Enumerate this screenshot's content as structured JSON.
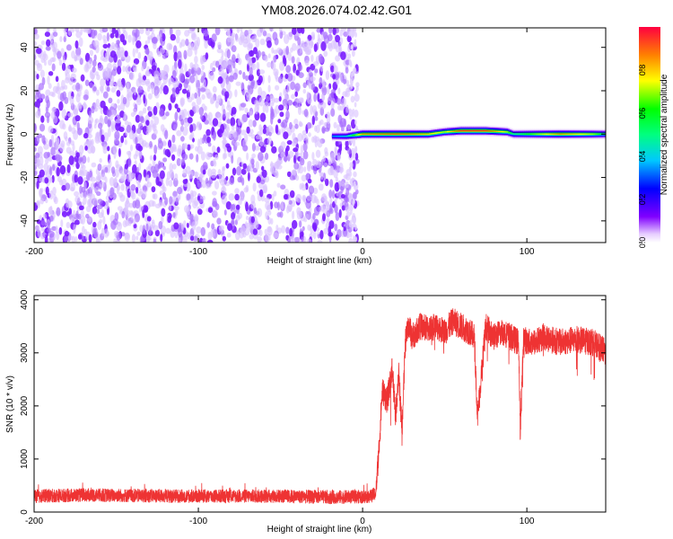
{
  "title": "YM08.2026.074.02.42.G01",
  "chart_data": [
    {
      "type": "heatmap",
      "name": "spectrogram",
      "xlabel": "Height of straight line (km)",
      "ylabel": "Frequency (Hz)",
      "xlim": [
        -200,
        148
      ],
      "ylim": [
        -50,
        49
      ],
      "xticks": [
        -200,
        -100,
        0,
        100
      ],
      "xtick_labels": [
        "-200",
        "-100",
        "0",
        "100"
      ],
      "yticks": [
        -40,
        -20,
        0,
        20,
        40
      ],
      "ytick_labels": [
        "-40",
        "-20",
        "0",
        "20",
        "40"
      ],
      "noise_region_x": [
        -200,
        -3
      ],
      "signal_band": {
        "x": [
          -18,
          -10,
          0,
          20,
          40,
          50,
          60,
          75,
          88,
          92,
          100,
          120,
          140,
          148
        ],
        "freq": [
          -1,
          -1,
          0,
          0,
          0,
          1,
          1.5,
          1.5,
          1,
          0,
          0,
          0,
          0,
          0
        ],
        "amplitude": [
          0.35,
          0.4,
          0.85,
          0.9,
          0.8,
          0.7,
          0.95,
          0.95,
          0.7,
          0.5,
          0.6,
          0.85,
          0.7,
          0.55
        ]
      },
      "colorbar": {
        "label": "Normalized spectral amplitude",
        "range": [
          0,
          1
        ],
        "ticks": [
          0.0,
          0.2,
          0.4,
          0.6,
          0.8
        ],
        "tick_labels": [
          "0.0",
          "0.2",
          "0.4",
          "0.6",
          "0.8"
        ]
      }
    },
    {
      "type": "line",
      "name": "snr",
      "xlabel": "Height of straight line (km)",
      "ylabel": "SNR (10 * v/v)",
      "xlim": [
        -200,
        148
      ],
      "ylim": [
        0,
        4080
      ],
      "xticks": [
        -200,
        -100,
        0,
        100
      ],
      "xtick_labels": [
        "-200",
        "-100",
        "0",
        "100"
      ],
      "yticks": [
        0,
        1000,
        2000,
        3000,
        4000
      ],
      "ytick_labels": [
        "0",
        "1000",
        "2000",
        "3000",
        "4000"
      ],
      "series": [
        {
          "name": "SNR",
          "color": "#ee3333",
          "x": [
            -200,
            -170,
            -140,
            -110,
            -80,
            -50,
            -20,
            0,
            5,
            8,
            10,
            12,
            15,
            18,
            20,
            22,
            24,
            26,
            28,
            30,
            35,
            40,
            45,
            50,
            55,
            60,
            65,
            68,
            70,
            75,
            80,
            85,
            90,
            95,
            96,
            98,
            100,
            105,
            110,
            120,
            130,
            140,
            145,
            148
          ],
          "y": [
            300,
            320,
            310,
            300,
            300,
            300,
            280,
            290,
            300,
            350,
            1200,
            2300,
            2100,
            2700,
            1800,
            2600,
            1500,
            3200,
            3550,
            3300,
            3500,
            3450,
            3500,
            3400,
            3600,
            3500,
            3400,
            3300,
            1800,
            3500,
            3300,
            3400,
            3300,
            3200,
            1500,
            3300,
            3200,
            3200,
            3300,
            3200,
            3250,
            3200,
            3100,
            3000
          ]
        }
      ]
    }
  ]
}
